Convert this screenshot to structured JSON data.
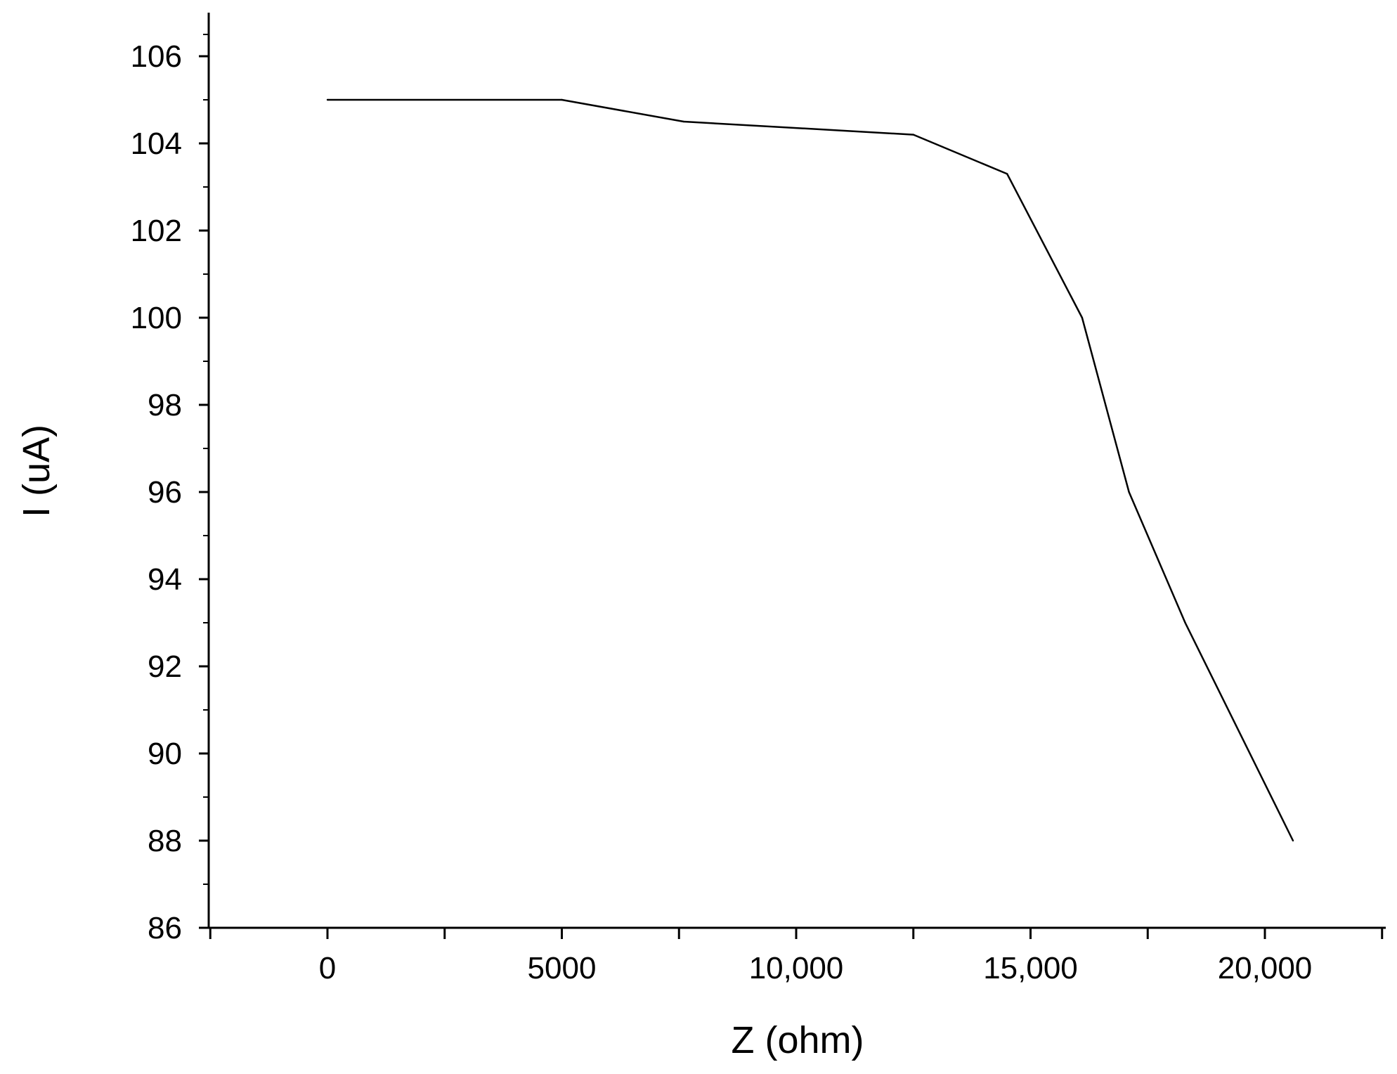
{
  "chart_data": {
    "type": "line",
    "title": "",
    "xlabel": "Z (ohm)",
    "ylabel": "I (uA)",
    "xlim": [
      -2500,
      22500
    ],
    "ylim": [
      86,
      107
    ],
    "x_ticks": [
      0,
      5000,
      10000,
      15000,
      20000
    ],
    "x_tick_labels": [
      "0",
      "5000",
      "10,000",
      "15,000",
      "20,000"
    ],
    "y_ticks": [
      86,
      88,
      90,
      92,
      94,
      96,
      98,
      100,
      102,
      104,
      106
    ],
    "y_tick_labels": [
      "86",
      "88",
      "90",
      "92",
      "94",
      "96",
      "98",
      "100",
      "102",
      "104",
      "106"
    ],
    "grid": false,
    "legend": "none",
    "series": [
      {
        "color": "#000000",
        "x": [
          0,
          5000,
          7600,
          12500,
          14500,
          16100,
          17100,
          18300,
          20600
        ],
        "y": [
          105,
          105,
          104.5,
          104.2,
          103.3,
          100,
          96,
          93,
          88
        ]
      }
    ]
  }
}
